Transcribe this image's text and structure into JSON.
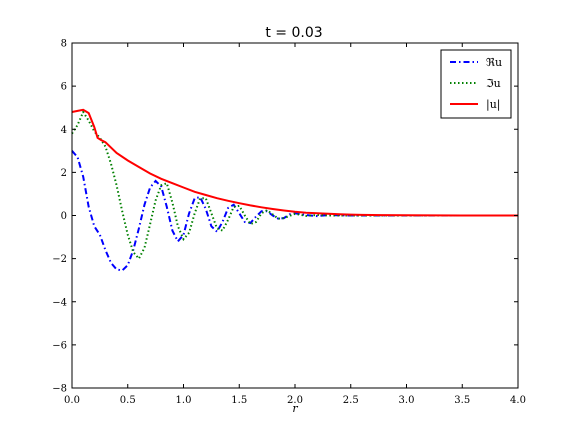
{
  "chart_data": {
    "type": "line",
    "title": "t = 0.03",
    "xlabel": "r",
    "ylabel": "",
    "xlim": [
      0.0,
      4.0
    ],
    "ylim": [
      -8,
      8
    ],
    "xticks": [
      0.0,
      0.5,
      1.0,
      1.5,
      2.0,
      2.5,
      3.0,
      3.5,
      4.0
    ],
    "xtick_labels": [
      "0.0",
      "0.5",
      "1.0",
      "1.5",
      "2.0",
      "2.5",
      "3.0",
      "3.5",
      "4.0"
    ],
    "yticks": [
      -8,
      -6,
      -4,
      -2,
      0,
      2,
      4,
      6,
      8
    ],
    "ytick_labels": [
      "−8",
      "−6",
      "−4",
      "−2",
      "0",
      "2",
      "4",
      "6",
      "8"
    ],
    "grid": false,
    "legend_position": "top-right",
    "series": [
      {
        "name": "ℜu",
        "color": "#0000ff",
        "style": "dashdot",
        "x": [
          0.0,
          0.05,
          0.1,
          0.15,
          0.2,
          0.25,
          0.3,
          0.35,
          0.4,
          0.45,
          0.5,
          0.55,
          0.6,
          0.65,
          0.7,
          0.75,
          0.8,
          0.85,
          0.9,
          0.95,
          1.0,
          1.05,
          1.1,
          1.15,
          1.2,
          1.25,
          1.3,
          1.35,
          1.4,
          1.45,
          1.5,
          1.55,
          1.6,
          1.65,
          1.7,
          1.75,
          1.8,
          1.85,
          1.9,
          1.95,
          2.0,
          2.1,
          2.2,
          2.3,
          2.5,
          2.7,
          3.0,
          3.5,
          4.0
        ],
        "y": [
          3.0,
          2.7,
          1.8,
          0.4,
          -0.5,
          -0.9,
          -1.6,
          -2.2,
          -2.5,
          -2.55,
          -2.3,
          -1.6,
          -0.6,
          0.5,
          1.3,
          1.6,
          1.35,
          0.4,
          -0.7,
          -1.2,
          -0.9,
          0.1,
          0.8,
          0.85,
          0.3,
          -0.5,
          -0.75,
          -0.3,
          0.35,
          0.5,
          0.1,
          -0.3,
          -0.35,
          -0.05,
          0.2,
          0.2,
          0.0,
          -0.15,
          -0.12,
          0.05,
          0.1,
          0.02,
          -0.03,
          0.02,
          0.0,
          0.0,
          0.0,
          0.0,
          0.0
        ]
      },
      {
        "name": "ℑu",
        "color": "#008000",
        "style": "dotted",
        "x": [
          0.0,
          0.05,
          0.1,
          0.15,
          0.2,
          0.25,
          0.3,
          0.35,
          0.4,
          0.45,
          0.5,
          0.55,
          0.6,
          0.65,
          0.7,
          0.75,
          0.8,
          0.85,
          0.9,
          0.95,
          1.0,
          1.05,
          1.1,
          1.15,
          1.2,
          1.25,
          1.3,
          1.35,
          1.4,
          1.45,
          1.5,
          1.55,
          1.6,
          1.65,
          1.7,
          1.75,
          1.8,
          1.85,
          1.9,
          2.0,
          2.1,
          2.2,
          2.3,
          2.5,
          2.7,
          3.0,
          3.5,
          4.0
        ],
        "y": [
          3.8,
          4.2,
          4.8,
          4.4,
          3.9,
          3.6,
          3.2,
          2.4,
          1.4,
          0.2,
          -0.9,
          -1.7,
          -2.0,
          -1.5,
          -0.4,
          0.7,
          1.4,
          1.5,
          0.6,
          -0.5,
          -1.1,
          -0.8,
          0.1,
          0.8,
          0.8,
          0.1,
          -0.6,
          -0.7,
          -0.2,
          0.4,
          0.45,
          0.0,
          -0.4,
          -0.3,
          0.1,
          0.25,
          0.05,
          -0.15,
          -0.12,
          0.08,
          -0.02,
          0.03,
          0.0,
          0.0,
          0.0,
          0.0,
          0.0,
          0.0
        ]
      },
      {
        "name": "|u|",
        "color": "#ff0000",
        "style": "solid",
        "x": [
          0.0,
          0.05,
          0.1,
          0.15,
          0.2,
          0.23,
          0.26,
          0.3,
          0.4,
          0.5,
          0.6,
          0.7,
          0.8,
          0.9,
          1.0,
          1.1,
          1.2,
          1.3,
          1.4,
          1.5,
          1.6,
          1.7,
          1.8,
          1.9,
          2.0,
          2.1,
          2.2,
          2.3,
          2.4,
          2.5,
          2.6,
          2.8,
          3.0,
          3.5,
          4.0
        ],
        "y": [
          4.8,
          4.85,
          4.9,
          4.75,
          4.1,
          3.6,
          3.5,
          3.4,
          2.9,
          2.55,
          2.25,
          1.95,
          1.7,
          1.5,
          1.3,
          1.1,
          0.95,
          0.8,
          0.68,
          0.57,
          0.47,
          0.38,
          0.3,
          0.23,
          0.17,
          0.13,
          0.1,
          0.08,
          0.06,
          0.04,
          0.03,
          0.02,
          0.01,
          0.0,
          0.0
        ]
      }
    ]
  }
}
